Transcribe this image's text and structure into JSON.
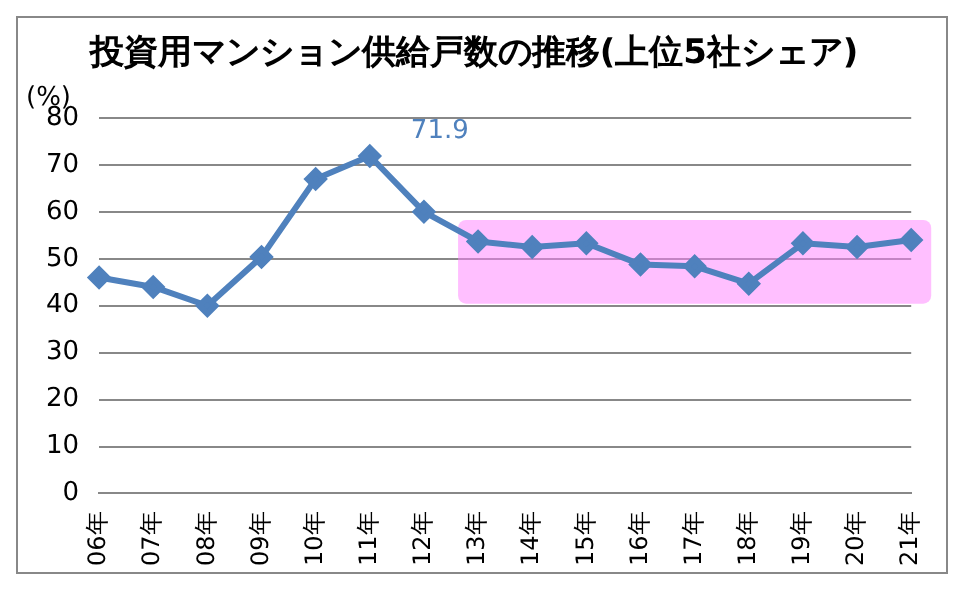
{
  "chart_data": {
    "type": "line",
    "title": "投資用マンション供給戸数の推移(上位5社シェア)",
    "ylabel": "(%)",
    "categories": [
      "06年",
      "07年",
      "08年",
      "09年",
      "10年",
      "11年",
      "12年",
      "13年",
      "14年",
      "15年",
      "16年",
      "17年",
      "18年",
      "19年",
      "20年",
      "21年"
    ],
    "series": [
      {
        "color": "#4f81bd",
        "values": [
          46,
          44,
          40,
          50.4,
          67,
          71.9,
          60,
          53.7,
          52.5,
          53.3,
          48.8,
          48.4,
          44.7,
          53.3,
          52.5,
          54
        ]
      }
    ],
    "annotations": [
      {
        "text": "71.9",
        "x": "11年",
        "y": 71.9
      }
    ],
    "bands": [
      {
        "axis": "x",
        "from": "13年",
        "to": "21年",
        "color": "#ff80ff"
      }
    ],
    "ylim": [
      0,
      80
    ],
    "yticks": [
      0,
      10,
      20,
      30,
      40,
      50,
      60,
      70,
      80
    ],
    "grid": "y",
    "marker": "diamond",
    "line_style": "solid",
    "legend": false
  }
}
